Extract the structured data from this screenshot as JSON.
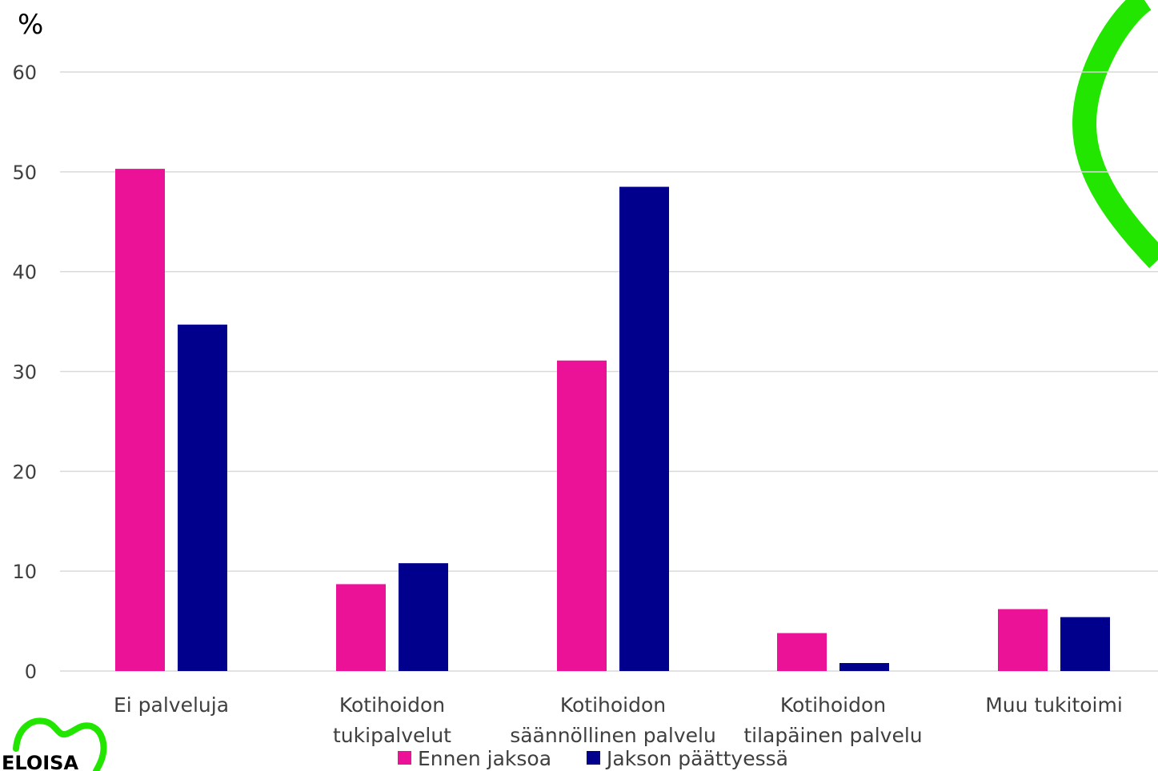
{
  "chart_data": {
    "type": "bar",
    "unit_label": "%",
    "categories": [
      [
        "Ei palveluja"
      ],
      [
        "Kotihoidon",
        "tukipalvelut"
      ],
      [
        "Kotihoidon",
        "säännöllinen palvelu"
      ],
      [
        "Kotihoidon",
        "tilapäinen palvelu"
      ],
      [
        "Muu tukitoimi"
      ]
    ],
    "series": [
      {
        "name": "Ennen jaksoa",
        "color": "#ec1297",
        "values": [
          50.3,
          8.7,
          31.1,
          3.8,
          6.2
        ]
      },
      {
        "name": "Jakson päättyessä",
        "color": "#00008c",
        "values": [
          34.7,
          10.8,
          48.5,
          0.8,
          5.4
        ]
      }
    ],
    "ylim": [
      0,
      60
    ],
    "yticks": [
      0,
      10,
      20,
      30,
      40,
      50,
      60
    ],
    "grid": true,
    "legend_position": "bottom"
  },
  "logo": {
    "text": "ELOISA",
    "color": "#22e600"
  },
  "decoration": {
    "color": "#22e600"
  }
}
